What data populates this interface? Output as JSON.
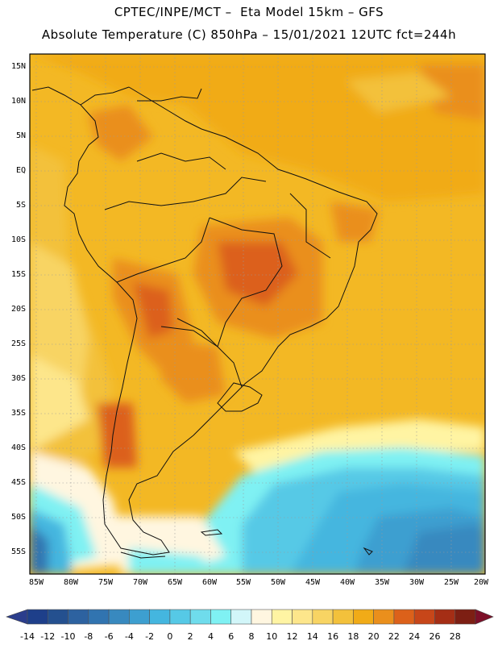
{
  "header": {
    "line1": "CPTEC/INPE/MCT –  Eta Model 15km – GFS",
    "line2": "Absolute Temperature (C) 850hPa – 15/01/2021 12UTC fct=244h"
  },
  "map": {
    "lat_labels": [
      "15N",
      "10N",
      "5N",
      "EQ",
      "5S",
      "10S",
      "15S",
      "20S",
      "25S",
      "30S",
      "35S",
      "40S",
      "45S",
      "50S",
      "55S"
    ],
    "lon_labels": [
      "85W",
      "80W",
      "75W",
      "70W",
      "65W",
      "60W",
      "55W",
      "50W",
      "45W",
      "40W",
      "35W",
      "30W",
      "25W",
      "20W"
    ],
    "lat_range": [
      17,
      -58
    ],
    "lon_range": [
      -86,
      -20
    ]
  },
  "colorbar": {
    "labels": [
      "-14",
      "-12",
      "-10",
      "-8",
      "-6",
      "-4",
      "-2",
      "0",
      "2",
      "4",
      "6",
      "8",
      "10",
      "12",
      "14",
      "16",
      "18",
      "20",
      "22",
      "24",
      "26",
      "28"
    ],
    "colors": [
      "#1e3f8a",
      "#24508f",
      "#2d62a0",
      "#3174b0",
      "#3889bf",
      "#3d9fd0",
      "#44b6df",
      "#56c9e6",
      "#6fdcec",
      "#7ff1f3",
      "#d2f6f9",
      "#fff6e0",
      "#fff4a3",
      "#fde68b",
      "#f8d463",
      "#f3c13b",
      "#f1ab17",
      "#ea8f1c",
      "#dc611a",
      "#c74619",
      "#a52e15",
      "#7d1f13"
    ],
    "under_color": "#2b3d8c",
    "over_color": "#7c0f28"
  }
}
